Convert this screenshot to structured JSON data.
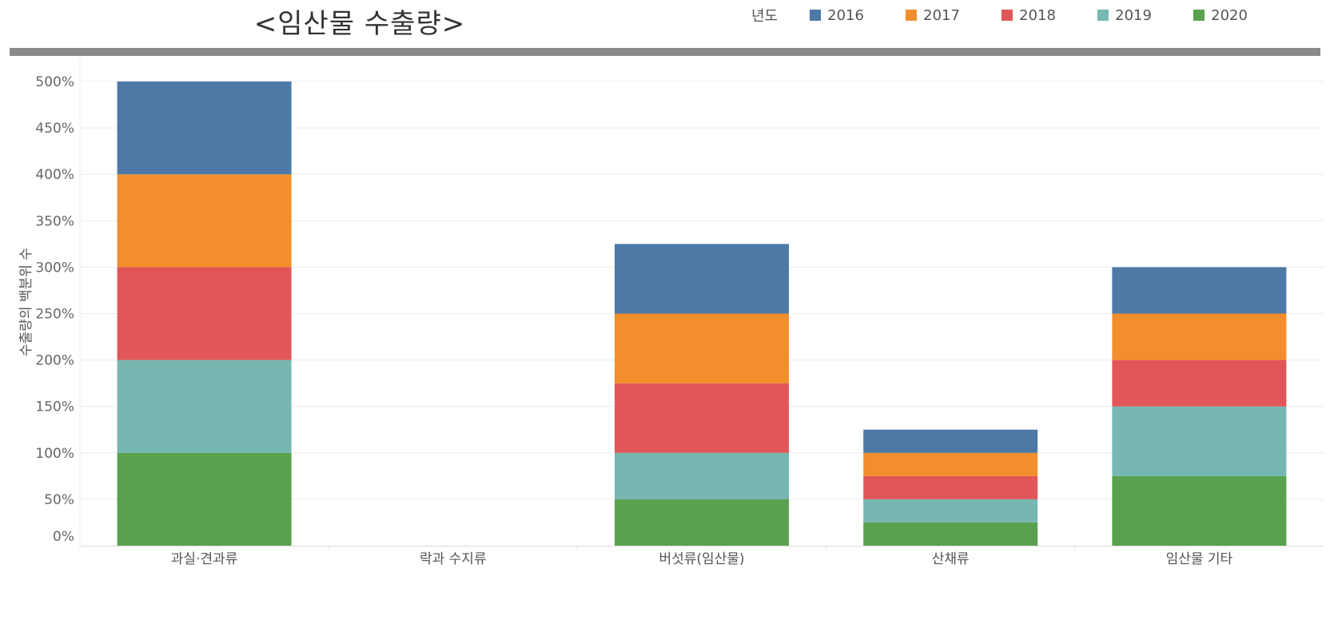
{
  "chart_data": {
    "type": "bar",
    "stacked": true,
    "title": "<임산물 수출량>",
    "ylabel": "수출량의 백분위 수",
    "xlabel": "",
    "ylim": [
      0,
      500
    ],
    "yticks": [
      "0%",
      "50%",
      "100%",
      "150%",
      "200%",
      "250%",
      "300%",
      "350%",
      "400%",
      "450%",
      "500%"
    ],
    "categories": [
      "과실·견과류",
      "락과 수지류",
      "버섯류(임산물)",
      "산채류",
      "임산물 기타"
    ],
    "legend": {
      "title": "년도",
      "placement": "top-right"
    },
    "series": [
      {
        "name": "2020",
        "color": "#59A14F",
        "values": [
          100,
          0,
          50,
          25,
          75
        ]
      },
      {
        "name": "2019",
        "color": "#76B7B2",
        "values": [
          100,
          0,
          50,
          25,
          75
        ]
      },
      {
        "name": "2018",
        "color": "#E15759",
        "values": [
          100,
          0,
          75,
          25,
          50
        ]
      },
      {
        "name": "2017",
        "color": "#F28E2B",
        "values": [
          100,
          0,
          75,
          25,
          50
        ]
      },
      {
        "name": "2016",
        "color": "#4E79A7",
        "values": [
          100,
          0,
          75,
          25,
          50
        ]
      }
    ],
    "legend_order": [
      "2016",
      "2017",
      "2018",
      "2019",
      "2020"
    ],
    "grid": true
  }
}
